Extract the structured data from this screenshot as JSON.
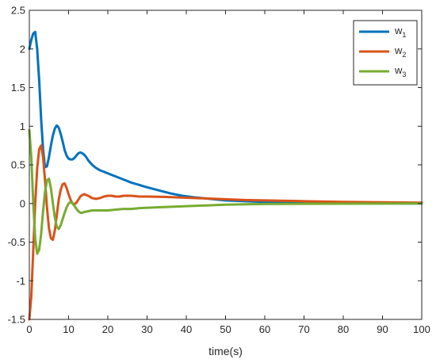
{
  "chart_data": {
    "type": "line",
    "title": "",
    "xlabel": "time(s)",
    "ylabel": "",
    "xlim": [
      0,
      100
    ],
    "ylim": [
      -1.5,
      2.5
    ],
    "xticks": [
      0,
      10,
      20,
      30,
      40,
      50,
      60,
      70,
      80,
      90,
      100
    ],
    "yticks": [
      -1.5,
      -1,
      -0.5,
      0,
      0.5,
      1,
      1.5,
      2,
      2.5
    ],
    "xtick_labels": [
      "0",
      "10",
      "20",
      "30",
      "40",
      "50",
      "60",
      "70",
      "80",
      "90",
      "100"
    ],
    "ytick_labels": [
      "-1.5",
      "-1",
      "-0.5",
      "0",
      "0.5",
      "1",
      "1.5",
      "2",
      "2.5"
    ],
    "grid": false,
    "legend_position": "top-right",
    "series": [
      {
        "name": "w1",
        "legend_base": "w",
        "legend_sub": "1",
        "color": "#0072BD",
        "x": [
          0,
          0.5,
          1,
          1.5,
          2,
          2.5,
          3,
          3.5,
          4,
          4.5,
          5,
          5.5,
          6,
          6.5,
          7,
          7.5,
          8,
          8.5,
          9,
          9.5,
          10,
          10.5,
          11,
          11.5,
          12,
          12.5,
          13,
          13.5,
          14,
          14.5,
          15,
          16,
          17,
          18,
          19,
          20,
          22,
          24,
          26,
          28,
          30,
          33,
          36,
          39,
          42,
          46,
          50,
          55,
          60,
          65,
          70,
          80,
          90,
          100
        ],
        "y": [
          2.0,
          2.12,
          2.2,
          2.22,
          2.0,
          1.6,
          1.1,
          0.7,
          0.47,
          0.48,
          0.6,
          0.75,
          0.88,
          0.97,
          1.01,
          0.98,
          0.9,
          0.8,
          0.69,
          0.62,
          0.58,
          0.57,
          0.57,
          0.59,
          0.62,
          0.65,
          0.66,
          0.65,
          0.63,
          0.6,
          0.56,
          0.5,
          0.46,
          0.43,
          0.41,
          0.39,
          0.35,
          0.31,
          0.27,
          0.24,
          0.21,
          0.17,
          0.13,
          0.1,
          0.08,
          0.06,
          0.04,
          0.03,
          0.02,
          0.01,
          0.005,
          0.002,
          0.001,
          0.0
        ]
      },
      {
        "name": "w2",
        "legend_base": "w",
        "legend_sub": "2",
        "color": "#D95319",
        "x": [
          0,
          0.5,
          1,
          1.5,
          2,
          2.5,
          3,
          3.5,
          4,
          4.5,
          5,
          5.5,
          6,
          6.5,
          7,
          7.5,
          8,
          8.5,
          9,
          9.5,
          10,
          10.5,
          11,
          11.5,
          12,
          12.5,
          13,
          13.5,
          14,
          15,
          16,
          17,
          18,
          19,
          20,
          21,
          22,
          23,
          24,
          26,
          28,
          30,
          35,
          40,
          45,
          50,
          55,
          60,
          70,
          80,
          90,
          100
        ],
        "y": [
          -1.5,
          -1.2,
          -0.6,
          0.0,
          0.45,
          0.7,
          0.75,
          0.6,
          0.3,
          -0.05,
          -0.32,
          -0.45,
          -0.47,
          -0.35,
          -0.15,
          0.05,
          0.18,
          0.25,
          0.26,
          0.2,
          0.12,
          0.05,
          0.0,
          -0.01,
          0.01,
          0.05,
          0.09,
          0.11,
          0.12,
          0.1,
          0.07,
          0.06,
          0.07,
          0.09,
          0.1,
          0.1,
          0.09,
          0.09,
          0.1,
          0.1,
          0.09,
          0.09,
          0.085,
          0.075,
          0.065,
          0.055,
          0.045,
          0.04,
          0.03,
          0.02,
          0.015,
          0.01
        ]
      },
      {
        "name": "w3",
        "legend_base": "w",
        "legend_sub": "3",
        "color": "#77AC30",
        "x": [
          0,
          0.5,
          1,
          1.5,
          2,
          2.5,
          3,
          3.5,
          4,
          4.5,
          5,
          5.5,
          6,
          6.5,
          7,
          7.5,
          8,
          8.5,
          9,
          9.5,
          10,
          10.5,
          11,
          11.5,
          12,
          12.5,
          13,
          13.5,
          14,
          15,
          16,
          17,
          18,
          19,
          20,
          22,
          24,
          26,
          28,
          30,
          35,
          40,
          45,
          50,
          55,
          60,
          70,
          80,
          90,
          100
        ],
        "y": [
          0.95,
          0.6,
          0.0,
          -0.45,
          -0.65,
          -0.6,
          -0.4,
          -0.1,
          0.15,
          0.3,
          0.32,
          0.2,
          0.0,
          -0.18,
          -0.3,
          -0.33,
          -0.28,
          -0.2,
          -0.12,
          -0.05,
          0.0,
          0.02,
          0.0,
          -0.03,
          -0.07,
          -0.1,
          -0.12,
          -0.12,
          -0.11,
          -0.1,
          -0.09,
          -0.09,
          -0.09,
          -0.09,
          -0.09,
          -0.08,
          -0.07,
          -0.07,
          -0.06,
          -0.055,
          -0.045,
          -0.035,
          -0.025,
          -0.015,
          -0.01,
          -0.007,
          -0.004,
          -0.002,
          -0.001,
          0.0
        ]
      }
    ]
  }
}
